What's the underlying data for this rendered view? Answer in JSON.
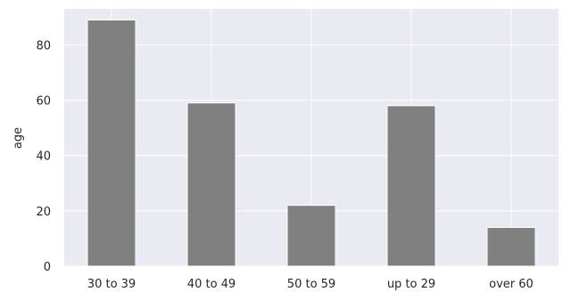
{
  "chart_data": {
    "type": "bar",
    "categories": [
      "30 to 39",
      "40 to 49",
      "50 to 59",
      "up to 29",
      "over 60"
    ],
    "values": [
      89,
      59,
      22,
      58,
      14
    ],
    "xlabel": "",
    "ylabel": "age",
    "ylim": [
      0,
      93
    ],
    "yticks": [
      0,
      20,
      40,
      60,
      80
    ],
    "grid": true,
    "colors": {
      "bar": "#808080",
      "bar_edge": "#ffffff",
      "plot_bg": "#eaeaf2",
      "grid": "#ffffff"
    }
  }
}
